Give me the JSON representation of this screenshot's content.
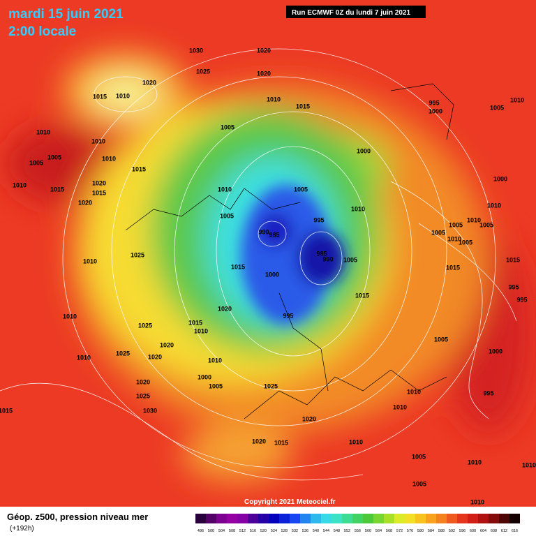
{
  "header": {
    "date": "mardi 15 juin 2021",
    "time": "2:00 locale",
    "run": "Run ECMWF 0Z du lundi 7 juin 2021"
  },
  "copyright": "Copyright 2021 Meteociel.fr",
  "legend": {
    "title": "Géop. z500, pression niveau mer",
    "lead": "(+192h)",
    "scale": [
      496,
      500,
      504,
      508,
      512,
      516,
      520,
      524,
      528,
      532,
      536,
      540,
      544,
      548,
      552,
      556,
      560,
      564,
      568,
      572,
      576,
      580,
      584,
      588,
      592,
      596,
      600,
      604,
      608,
      612,
      616
    ]
  },
  "isobar_labels": [
    1030,
    1020,
    1025,
    1020,
    1020,
    1015,
    1010,
    1010,
    1015,
    995,
    1000,
    1005,
    1010,
    1005,
    1010,
    1010,
    1005,
    1005,
    1010,
    1015,
    1000,
    1020,
    1015,
    1010,
    1015,
    1020,
    1010,
    1005,
    1000,
    1010,
    1010,
    995,
    990,
    985,
    1005,
    1005,
    1010,
    1005,
    1005,
    1010,
    1005,
    985,
    990,
    1005,
    1010,
    1025,
    1015,
    1000,
    1015,
    1015,
    1015,
    995,
    995,
    1020,
    995,
    1010,
    1015,
    1010,
    1025,
    1005,
    1020,
    1025,
    1020,
    1010,
    1010,
    1000,
    1000,
    1005,
    1025,
    1020,
    1025,
    1030,
    1015,
    1010,
    1010,
    1020,
    995,
    1020,
    1015,
    1010,
    1005,
    1010,
    1010,
    1010,
    1005
  ]
}
